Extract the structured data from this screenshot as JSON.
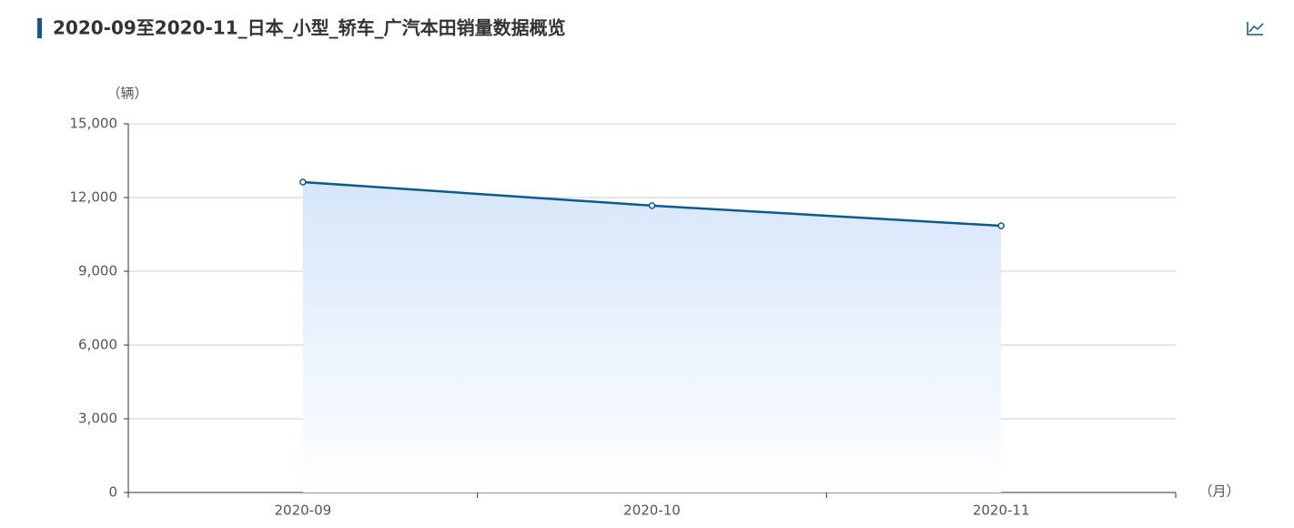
{
  "chart_data": {
    "type": "line",
    "title": "2020-09至2020-11_日本_小型_轿车_广汽本田销量数据概览",
    "y_unit": "（辆）",
    "x_unit": "（月）",
    "categories": [
      "2020-09",
      "2020-10",
      "2020-11"
    ],
    "series": [
      {
        "color": "#0f5a8c",
        "values": [
          12630,
          11670,
          10850
        ]
      }
    ],
    "ylim": [
      0,
      15000
    ],
    "yticks": [
      0,
      {
        "value": 3000,
        "label": "3,000"
      },
      {
        "value": 6000,
        "label": "6,000"
      },
      {
        "value": 9000,
        "label": "9,000"
      },
      {
        "value": 12000,
        "label": "12,000"
      },
      {
        "value": 15000,
        "label": "15,000"
      }
    ],
    "grid": true
  }
}
